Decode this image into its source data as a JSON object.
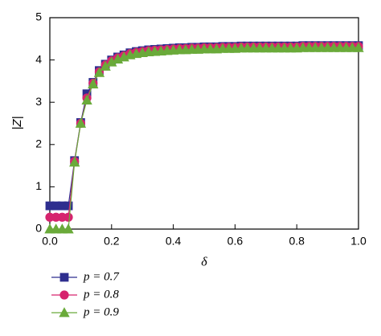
{
  "chart_data": {
    "type": "line",
    "xlabel": "δ",
    "ylabel": "|Z|",
    "x": [
      0,
      0.02,
      0.04,
      0.06,
      0.08,
      0.1,
      0.12,
      0.14,
      0.16,
      0.18,
      0.2,
      0.22,
      0.24,
      0.26,
      0.28,
      0.3,
      0.32,
      0.34,
      0.36,
      0.38,
      0.4,
      0.42,
      0.44,
      0.46,
      0.48,
      0.5,
      0.52,
      0.54,
      0.56,
      0.58,
      0.6,
      0.62,
      0.64,
      0.66,
      0.68,
      0.7,
      0.72,
      0.74,
      0.76,
      0.78,
      0.8,
      0.82,
      0.84,
      0.86,
      0.88,
      0.9,
      0.92,
      0.94,
      0.96,
      0.98,
      1.0
    ],
    "series": [
      {
        "name": "p = 0.7",
        "color": "#2e2e8f",
        "marker": "square",
        "values": [
          0.55,
          0.55,
          0.55,
          0.55,
          1.62,
          2.52,
          3.2,
          3.47,
          3.75,
          3.9,
          4.0,
          4.07,
          4.12,
          4.17,
          4.2,
          4.22,
          4.24,
          4.25,
          4.26,
          4.27,
          4.28,
          4.29,
          4.29,
          4.3,
          4.3,
          4.31,
          4.31,
          4.31,
          4.32,
          4.32,
          4.32,
          4.33,
          4.33,
          4.33,
          4.33,
          4.33,
          4.33,
          4.33,
          4.33,
          4.33,
          4.33,
          4.34,
          4.34,
          4.34,
          4.34,
          4.34,
          4.34,
          4.34,
          4.34,
          4.34,
          4.34
        ]
      },
      {
        "name": "p = 0.8",
        "color": "#d6246e",
        "marker": "circle",
        "values": [
          0.28,
          0.28,
          0.28,
          0.28,
          1.6,
          2.5,
          3.1,
          3.45,
          3.72,
          3.88,
          3.98,
          4.05,
          4.1,
          4.15,
          4.18,
          4.2,
          4.22,
          4.23,
          4.24,
          4.25,
          4.26,
          4.27,
          4.27,
          4.28,
          4.28,
          4.29,
          4.29,
          4.29,
          4.3,
          4.3,
          4.3,
          4.31,
          4.31,
          4.31,
          4.31,
          4.31,
          4.31,
          4.31,
          4.31,
          4.31,
          4.31,
          4.32,
          4.32,
          4.32,
          4.32,
          4.32,
          4.32,
          4.32,
          4.32,
          4.32,
          4.32
        ]
      },
      {
        "name": "p = 0.9",
        "color": "#6aaa3a",
        "marker": "triangle",
        "values": [
          0,
          0,
          0,
          0,
          1.58,
          2.5,
          3.05,
          3.43,
          3.7,
          3.85,
          3.95,
          4.02,
          4.07,
          4.12,
          4.15,
          4.17,
          4.19,
          4.2,
          4.21,
          4.22,
          4.23,
          4.24,
          4.24,
          4.25,
          4.25,
          4.26,
          4.26,
          4.26,
          4.27,
          4.27,
          4.27,
          4.28,
          4.28,
          4.28,
          4.28,
          4.28,
          4.28,
          4.28,
          4.28,
          4.28,
          4.28,
          4.29,
          4.29,
          4.29,
          4.29,
          4.29,
          4.29,
          4.29,
          4.29,
          4.29,
          4.29
        ]
      }
    ],
    "xlim": [
      0,
      1
    ],
    "ylim": [
      0,
      5
    ],
    "xticks": [
      {
        "value": 0,
        "label": "0.0"
      },
      {
        "value": 0.2,
        "label": "0.2"
      },
      {
        "value": 0.4,
        "label": "0.4"
      },
      {
        "value": 0.6,
        "label": "0.6"
      },
      {
        "value": 0.8,
        "label": "0.8"
      },
      {
        "value": 1,
        "label": "1.0"
      }
    ],
    "yticks": [
      0,
      1,
      2,
      3,
      4,
      5
    ],
    "legend": "bottom-left"
  }
}
